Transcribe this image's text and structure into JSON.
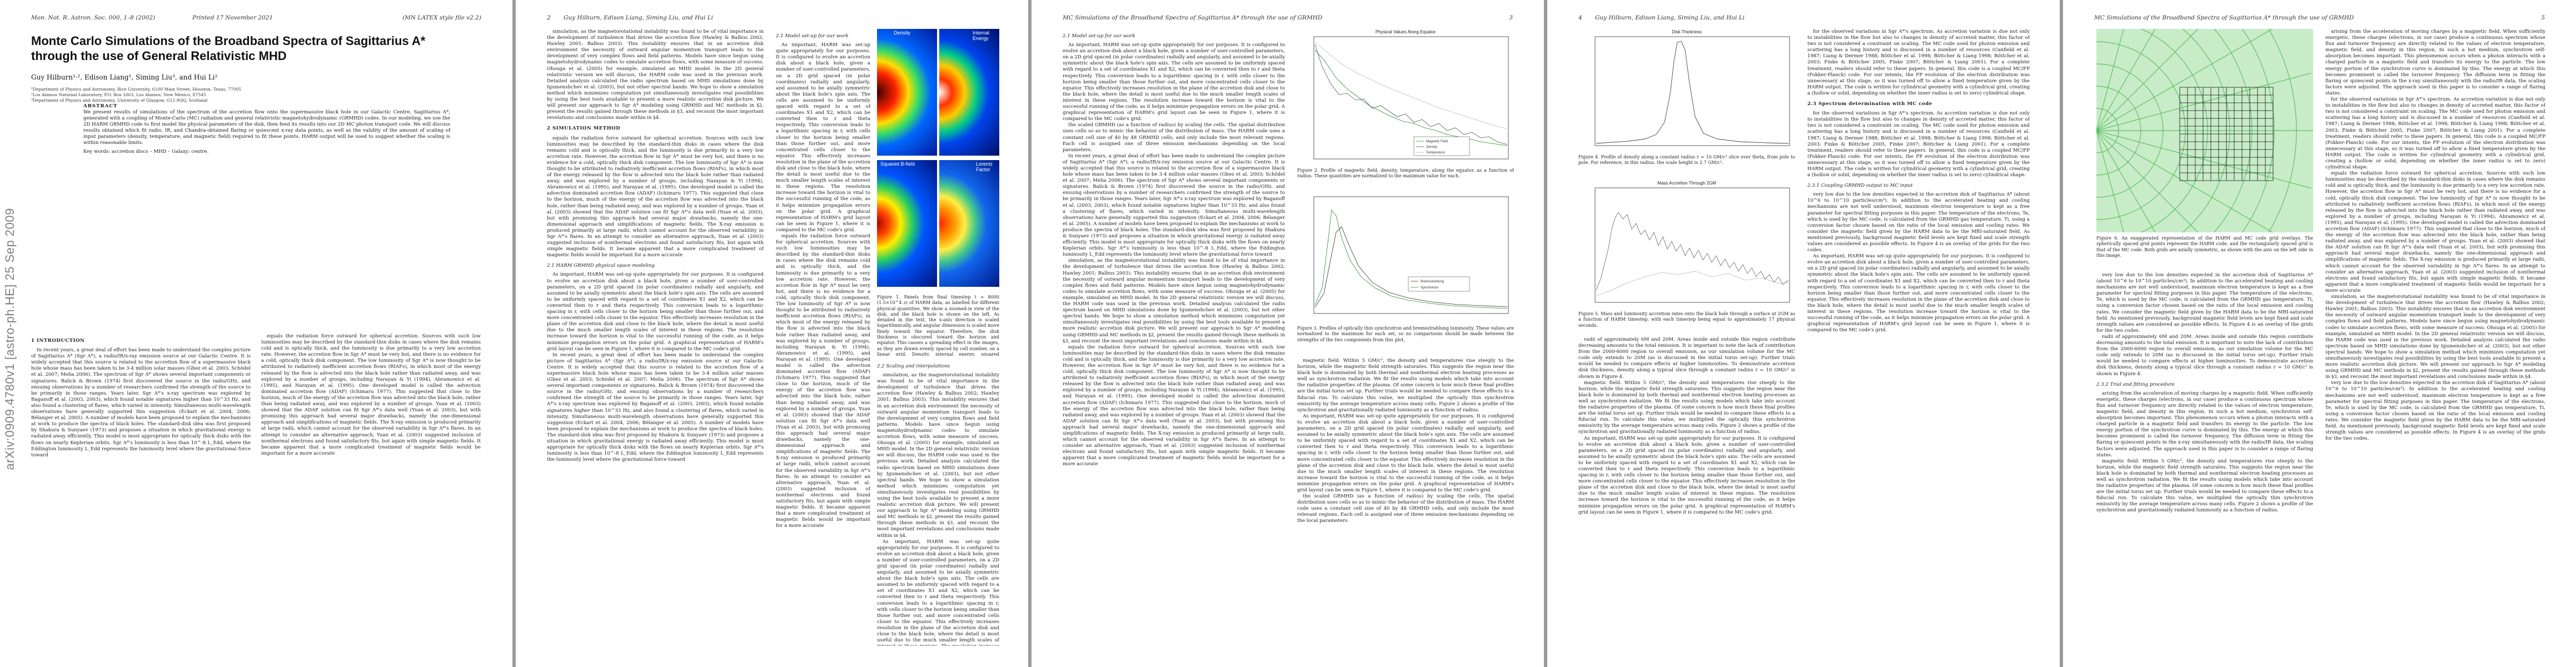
{
  "header": {
    "p1_left": "Mon. Not. R. Astron. Soc. 000, 1–8 (2002)",
    "p1_mid": "Printed 17 November 2021",
    "p1_right": "(MN LATEX style file v2.2)",
    "p2_left": "2",
    "p2_right": "Guy Hilburn, Edison Liang, Siming Liu, and Hui Li",
    "p3_left": "MC Simulations of the Broadband Spectra of Sagittarius A* through the use of GRMHD",
    "p3_right": "3",
    "p4_left": "4",
    "p4_right": "Guy Hilburn, Edison Liang, Siming Liu, and Hui Li",
    "p5_left": "MC Simulations of the Broadband Spectra of Sagittarius A* through the use of GRMHD",
    "p5_right": "5"
  },
  "arxiv_id": "arXiv:0909.4780v1  [astro-ph.HE]  25 Sep 2009",
  "paper": {
    "title": "Monte Carlo Simulations of the Broadband Spectra of Sagittarius A* through the use of General Relativistic MHD",
    "authors": "Guy Hilburn¹·², Edison Liang¹, Siming Liu³, and Hui Li²",
    "affil1": "¹Department of Physics and Astronomy, Rice University, 6100 Main Street, Houston, Texas, 77005",
    "affil2": "²Los Alamos National Laboratory, P.O. Box 1663, Los Alamos, New Mexico, 87545",
    "affil3": "³Department of Physics and Astronomy, University of Glasgow, G12 8QQ, Scotland",
    "abstract_head": "ABSTRACT",
    "abstract": "We present results of simulations of the spectrum of the accretion flow onto the supermassive black hole in our Galactic Centre, Sagittarius A*, generated with a coupling of Monte-Carlo (MC) radiation and general relativistic magnetohydrodynamic (GRMHD) codes. In our modeling, we use the 2D HARM GRMHD code to first model the physical parameters of the disk, then feed its results into our 2D MC photon transport code. We will discuss results obtained which fit radio, IR, and Chandra-obtained flaring or quiescent x-ray data points, as well as the validity of the amount of scaling of input parameters (density, temperature, and magnetic field) required to fit these points. HARM output will be used to suggest whether the scaling is within reasonable limits.",
    "keywords": "Key words: accretion discs – MHD – Galaxy: centre."
  },
  "sections": {
    "intro": "1 INTRODUCTION",
    "model_setup": "2.1 Model set-up for our work",
    "sim": "2 SIMULATION METHOD",
    "harm": "2.1 HARM GRMHD physical space modeling",
    "scaling": "2.2 Scaling and interpolations",
    "mc": "2.3 Spectrum determination with MC code",
    "coupling": "2.3.1 Coupling GRMHD output to MC input",
    "trial": "2.3.2 Trial and fitting procedure"
  },
  "text": {
    "p1_c1": "In recent years, a great deal of effort has been made to understand the complex picture of Sagittarius A* (Sgr A*), a radio/IR/x-ray emission source at our Galactic Centre. It is widely accepted that this source is related to the accretion flow of a supermassive black hole whose mass has been taken to be 3-4 million solar masses (Ghez et al. 2003; Schödel et al. 2007; Melia 2006). The spectrum of Sgr A* shows several important components or signatures. Balick & Brown (1974) first discovered the source in the radio/GHz, and ensuing observations by a number of researchers confirmed the strength of the source to be primarily in those ranges. Years later, Sgr A*'s x-ray spectrum was explored by Baganoff et al. (2003, 2003), which found notable signatures higher than 10^33 Hz, and also found a clustering of flares, which varied in intensity. Simultaneous multi-wavelength observations have generally supported this suggestion (Eckart et al. 2004, 2006; Bélanger et al. 2005). A number of models have been proposed to explain the mechanisms at work to produce the spectra of black holes. The standard-disk idea was first proposed by Shakura & Sunyaev (1973) and proposes a situation in which gravitational energy is radiated away efficiently. This model is most appropriate for optically thick disks with the flows on nearly Keplerian orbits. Sgr A*'s luminosity is less than 10^-8 L_Edd, where the Eddington luminosity L_Edd represents the luminosity level where the gravitational force toward",
    "p1_c2": "equals the radiation force outward for spherical accretion. Sources with such low luminosities may be described by the standard-thin disks in cases where the disk remains cold and is optically thick, and the luminosity is due primarily to a very low accretion rate. However, the accretion flow in Sgr A* must be very hot, and there is no evidence for a cold, optically thick disk component. The low luminosity of Sgr A* is now thought to be attributed to radiatively inefficient accretion flows (RIAFs), in which most of the energy released by the flow is advected into the black hole rather than radiated away, and was explored by a number of groups, including Narayan & Yi (1994), Abramowicz et al. (1995), and Narayan et al. (1995). One developed model is called the advection dominated accretion flow (ADAF) (Ichimaru 1977). This suggested that close to the horizon, much of the energy of the accretion flow was advected into the black hole, rather than being radiated away, and was explored by a number of groups. Yuan et al. (2003) showed that the ADAF solution can fit Sgr A*'s data well (Yuan et al. 2003), but with promising this approach had several major drawbacks, namely the one-dimensional approach and simplifications of magnetic fields. The X-ray emission is produced primarily at large radii, which cannot account for the observed variability in Sgr A*'s flares. In an attempt to consider an alternative approach, Yuan et al. (2003) suggested inclusion of nonthermal electrons and found satisfactory fits, but again with simple magnetic fields. It became apparent that a more complicated treatment of magnetic fields would be important for a more accurate",
    "p2_c1": "simulation, as the magnetorotational instability was found to be of vital importance in the development of turbulence that drives the accretion flow (Hawley & Balbus 2002; Hawley 2001; Balbus 2003). This instability ensures that in an accretion disk environment the necessity of outward angular momentum transport leads to the development of very complex flows and field patterns. Models have since begun using magnetohydrodynamic codes to simulate accretion flows, with some measure of success. Ohsuga et al. (2005) for example, simulated an MHD model. In the 2D general relativistic version we will discuss, the HARM code was used in the previous work. Detailed analysis calculated the radio spectrum based on MHD simulations done by Igumenshchev et al. (2003), but not other spectral bands. We hope to show a simulation method which minimizes computation yet simultaneously investigates real possibilities by using the best tools available to present a more realistic accretion disk picture. We will present our approach to Sgr A* modeling using GRMHD and MC methods in §2, present the results gained through these methods in §3, and recount the most important revelations and conclusions made within in §4.",
    "p2_c2": "As important, HARM was set-up quite appropriately for our purposes. It is configured to evolve an accretion disk about a black hole, given a number of user-controlled parameters, on a 2D grid spaced (in polar coordinates) radially and angularly, and assumed to be axially symmetric about the black hole's spin axis. The cells are assumed to be uniformly spaced with regard to a set of coordinates X1 and X2, which can be converted then to r and theta respectively. This conversion leads to a logarithmic spacing in r, with cells closer to the horizon being smaller than those further out, and more concentrated cells closer to the equator. This effectively increases resolution in the plane of the accretion disk and close to the black hole, where the detail is most useful due to the much smaller length scales of interest in these regions. The resolution increase toward the horizon is vital to the successful running of the code, as it helps minimize propagation errors on the polar grid. A graphical representation of HARM's grid layout can be seen in Figure 1, where it is compared to the MC code's grid.",
    "p3_c1": "the scaled GRMHD (as a function of radius) by scaling the cells. The spatial distribution uses cells so as to mimic the behavior of the distribution of mass. The HARM code uses a constant cell size of 40 by 48 GRMHD cells, and only include the most relevant regions. Each cell is assigned one of three emission mechanisms depending on the local parameters.",
    "p3_c2": "magnetic field. Within 5 GM/c², the density and temperatures rise steeply to the horizon, while the magnetic field strength saturates. This suggests the region near the black hole is dominated by both thermal and nonthermal electron heating processes as well as synchrotron radiation. We fit the results using models which take into account the radiative properties of the plasma. Of some concern is how much these final profiles are the initial torus set up. Further trials would be needed to compare these effects to a fiducial run. To calculate this value, we multiplied the optically thin synchrotron emissivity by the average temperature across many cells. Figure 2 shows a profile of the synchrotron and gravitationally radiated luminosity as a function of radius.",
    "p4_c1": "radii of approximately 6M and 20M. Areas inside and outside this region contribute decreasing amounts to the total emission. It is important to note the lack of contribution from the 2000-6000 region to overall emission, as our simulation volume for the MC code only extends to 20M (as is discussed in the initial torus set-up). Further trials would be needed to compare effects at higher luminosities. To demonstrate accretion disk thickness, density along a typical slice through a constant radius r = 10 GM/c² is shown in Figure 4.",
    "p4_c2": "for the observed variations in Sgr A*'s spectrum. As accretion variation is due not only to instabilities in the flow but also to changes in density of accreted matter, this factor of two is not considered a constraint on scaling. The MC code used for photon emission and scattering has a long history and is discussed in a number of resources (Canfield et al. 1987; Liang & Dermer 1988; Böttcher et al. 1998; Böttcher & Liang 1998; Böttcher et al. 2003; Finke & Böttcher 2005, Finke 2007; Böttcher & Liang 2001). For a complete treatment, readers should refer to these papers. In general, this code is a coupled MC/FP (Fokker-Planck) code. For our intents, the FP evolution of the electron distribution was unnecessary at this stage, so it was turned off to allow a fixed temperature given by the HARM output. The code is written for cylindrical geometry with a cylindrical grid, creating a (hollow or solid, depending on whether the inner radius is set to zero) cylindrical shape.",
    "p5_c1": "very low due to the low densities expected in the accretion disk of Sagittarius A* (about 10^6 to 10^10 particles/cm³). In addition to the accelerated heating and cooling mechanisms are not well understood, maximum electron temperature is kept as a free parameter for spectral fitting purposes in this paper. The temperature of the electrons, Te, which is used by the MC code, is calculated from the GRMHD gas temperature, Ti, using a conversion factor chosen based on the ratio of the local emission and cooling rates. We consider the magnetic field given by the HARM data to be the MRI-saturated field. As mentioned previously, background magnetic field levels are kept fixed and scale strength values are considered as possible effects. In Figure 4 is an overlay of the grids for the two codes.",
    "p5_c2": "arising from the acceleration of moving charges by a magnetic field. When sufficiently energetic, these charges (electrons, in our case) produce a continuous spectrum whose flux and turnover frequency are directly related to the values of electron temperature, magnetic field, and density in this region. In such a hot medium, synchrotron self-absorption becomes important. This phenomenon occurs when a photon interacts with a charged particle in a magnetic field and transfers its energy to the particle. The low energy portion of the synchrotron curve is dominated by this. The energy at which this becomes prominent is called the turnover frequency. The diffusion term in fitting the flaring or quiescent points in the x-ray simultaneously with the radio/IR data, the scaling factors were adjusted. The approach used in this paper is to consider a range of flaring states."
  },
  "figures": {
    "fig1_caption": "Figure 1. Panels from final timestep t = 8000 (1.5×10^4 s) of HARM data, as labelled for different physical quantities. We show a zoomed-in view of the disk, and the black hole is shown on the left. As detailed in the text, the x-axis direction is scaled logarithmically, and angular dimension is scaled more finely toward the equator. Therefore, the disk thickness is obscured toward the horizon and equator. This causes a spreading effect in the images, as they are drawn evenly spaced by cell number, on a linear grid. Density, internal energy, squared magnetic field, and Lorentz factor are shown.",
    "fig2_caption": "Figure 2. Profile of magnetic field, density, temperature, along the equator, as a function of radius. These quantities are normalized to the maximum value for each.",
    "fig3_caption": "Figure 3. Profiles of optically thin synchrotron and bremsstrahlung luminosity. These values are normalized to the maximum for each set, so no comparisons should be made between the strengths of the two components from this plot.",
    "fig4_caption": "Figure 4. Profile of density along a constant radius r = 10 GM/c² slice over theta, from pole to pole. For reference, in this radius, the scale height is 2.7 GM/c².",
    "fig5_caption": "Figure 5. Mass and luminosity accretion rates onto the black hole through a surface at 2GM as a function of HARM timestep, with each timestep being equal to approximately 17 physical seconds.",
    "fig6_caption": "Figure 6. An exaggerated representation of the HARM and MC code grid overlays. The spherically spaced grid points represent the HARM code, and the rectangularly spaced grid is that of the MC code. Both grids are axially symmetric, as shown with the axis on the left side in this image.",
    "panel_density": "Density",
    "panel_internal": "Internal Energy",
    "panel_bfield": "Squared B-field",
    "panel_lorentz": "Lorentz Factor",
    "plot_profiles_title": "Physical Values Along Equator",
    "plot_disk_title": "Disk Thickness",
    "plot_mass_title": "Mass Accretion Through 2GM",
    "legend_b": "Magnetic Field",
    "legend_rho": "Density",
    "legend_t": "Temperature",
    "legend_sync": "Synchrotron",
    "legend_brems": "Bremsstrahlung"
  },
  "colors": {
    "page": "#ffffff",
    "gutter": "#9a9a9a",
    "arxiv": "#7f7f7f",
    "grid_green": "#9fd6a1"
  }
}
